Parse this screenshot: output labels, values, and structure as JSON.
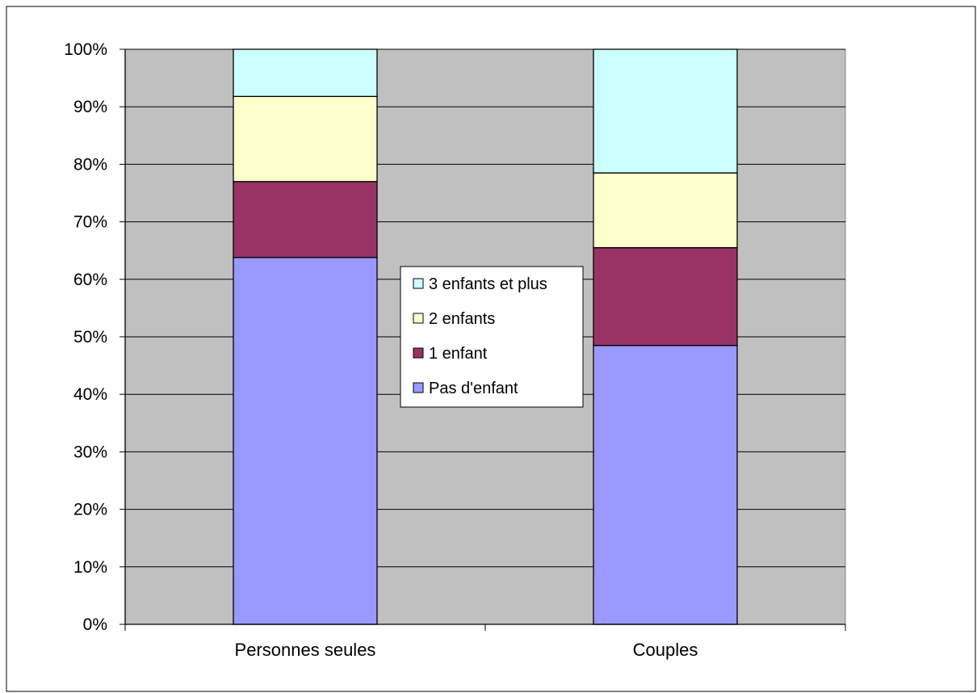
{
  "chart_data": {
    "type": "bar",
    "stacked": true,
    "percent_scale": true,
    "categories": [
      "Personnes seules",
      "Couples"
    ],
    "series": [
      {
        "name": "Pas d'enfant",
        "values": [
          63.8,
          48.5
        ],
        "color": "#9999ff"
      },
      {
        "name": "1 enfant",
        "values": [
          13.2,
          17.0
        ],
        "color": "#993366"
      },
      {
        "name": "2 enfants",
        "values": [
          14.8,
          13.0
        ],
        "color": "#ffffcc"
      },
      {
        "name": "3 enfants et plus",
        "values": [
          8.2,
          21.5
        ],
        "color": "#ccffff"
      }
    ],
    "ylim": [
      0,
      100
    ],
    "yticks": [
      "0%",
      "10%",
      "20%",
      "30%",
      "40%",
      "50%",
      "60%",
      "70%",
      "80%",
      "90%",
      "100%"
    ],
    "grid": true,
    "plot_background": "#c0c0c0",
    "legend": {
      "placement": "center",
      "order": [
        "3 enfants et plus",
        "2 enfants",
        "1 enfant",
        "Pas d'enfant"
      ]
    }
  }
}
